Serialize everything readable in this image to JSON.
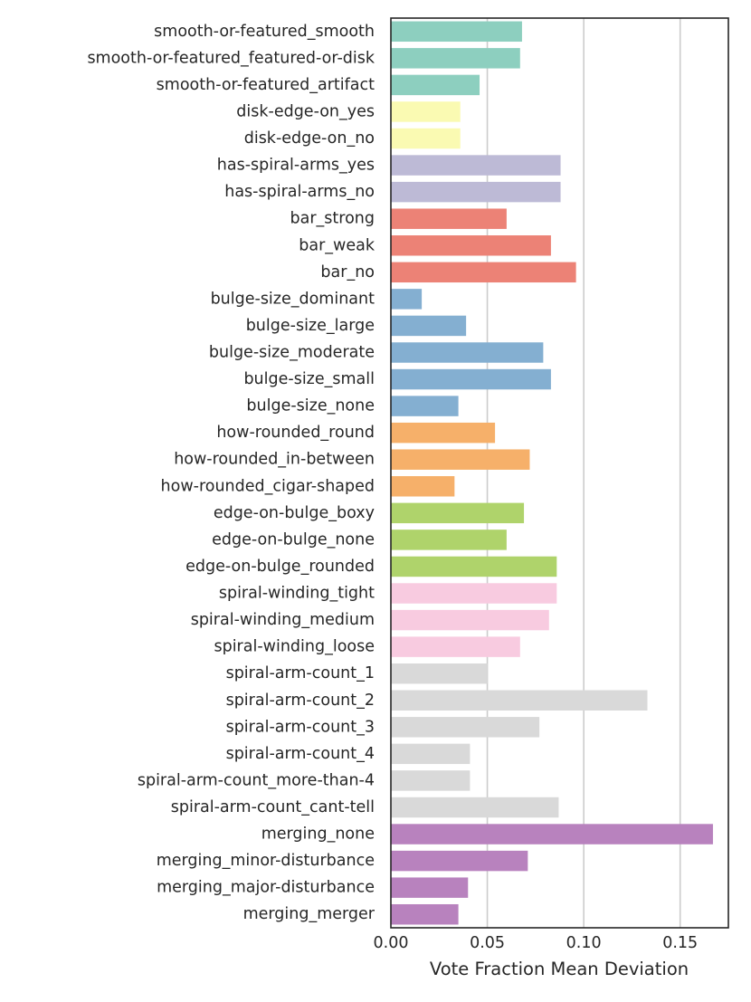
{
  "chart_data": {
    "type": "bar",
    "orientation": "horizontal",
    "title": "",
    "xlabel": "Vote Fraction Mean Deviation",
    "ylabel": "",
    "xlim": [
      0,
      0.175
    ],
    "xticks": [
      0.0,
      0.05,
      0.1,
      0.15
    ],
    "xtick_labels": [
      "0.00",
      "0.05",
      "0.10",
      "0.15"
    ],
    "grid": "vertical",
    "categories": [
      "smooth-or-featured_smooth",
      "smooth-or-featured_featured-or-disk",
      "smooth-or-featured_artifact",
      "disk-edge-on_yes",
      "disk-edge-on_no",
      "has-spiral-arms_yes",
      "has-spiral-arms_no",
      "bar_strong",
      "bar_weak",
      "bar_no",
      "bulge-size_dominant",
      "bulge-size_large",
      "bulge-size_moderate",
      "bulge-size_small",
      "bulge-size_none",
      "how-rounded_round",
      "how-rounded_in-between",
      "how-rounded_cigar-shaped",
      "edge-on-bulge_boxy",
      "edge-on-bulge_none",
      "edge-on-bulge_rounded",
      "spiral-winding_tight",
      "spiral-winding_medium",
      "spiral-winding_loose",
      "spiral-arm-count_1",
      "spiral-arm-count_2",
      "spiral-arm-count_3",
      "spiral-arm-count_4",
      "spiral-arm-count_more-than-4",
      "spiral-arm-count_cant-tell",
      "merging_none",
      "merging_minor-disturbance",
      "merging_major-disturbance",
      "merging_merger"
    ],
    "values": [
      0.068,
      0.067,
      0.046,
      0.036,
      0.036,
      0.088,
      0.088,
      0.06,
      0.083,
      0.096,
      0.016,
      0.039,
      0.079,
      0.083,
      0.035,
      0.054,
      0.072,
      0.033,
      0.069,
      0.06,
      0.086,
      0.086,
      0.082,
      0.067,
      0.05,
      0.133,
      0.077,
      0.041,
      0.041,
      0.087,
      0.167,
      0.071,
      0.04,
      0.035
    ],
    "colors": [
      "#8dcfbf",
      "#8dcfbf",
      "#8dcfbf",
      "#fafab2",
      "#fafab2",
      "#bdbad6",
      "#bdbad6",
      "#ec8276",
      "#ec8276",
      "#ec8276",
      "#84afd1",
      "#84afd1",
      "#84afd1",
      "#84afd1",
      "#84afd1",
      "#f6b06a",
      "#f6b06a",
      "#f6b06a",
      "#afd36b",
      "#afd36b",
      "#afd36b",
      "#f8cbe0",
      "#f8cbe0",
      "#f8cbe0",
      "#d9d9d9",
      "#d9d9d9",
      "#d9d9d9",
      "#d9d9d9",
      "#d9d9d9",
      "#d9d9d9",
      "#b882be",
      "#b882be",
      "#b882be",
      "#b882be"
    ],
    "axis_color": "#262626",
    "grid_color": "#cccccc"
  }
}
